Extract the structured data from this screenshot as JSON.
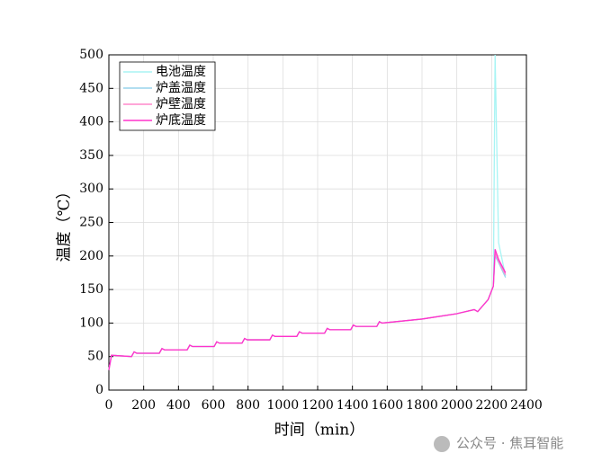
{
  "chart_data": {
    "type": "line",
    "xlabel": "时间（min）",
    "ylabel": "温度（℃）",
    "x": [
      0,
      15,
      130,
      145,
      160,
      290,
      305,
      320,
      450,
      465,
      480,
      605,
      620,
      635,
      765,
      780,
      795,
      925,
      940,
      955,
      1080,
      1095,
      1110,
      1240,
      1255,
      1270,
      1390,
      1405,
      1420,
      1540,
      1555,
      1570,
      1800,
      2000,
      2100,
      2120,
      2180,
      2210,
      2220,
      2240,
      2280
    ],
    "series": [
      {
        "name": "电池温度",
        "color": "#a8f4f4",
        "values": [
          30,
          52,
          50,
          57,
          55,
          55,
          62,
          60,
          60,
          67,
          65,
          65,
          72,
          70,
          70,
          77,
          75,
          75,
          82,
          80,
          80,
          87,
          85,
          85,
          92,
          90,
          90,
          97,
          95,
          95,
          102,
          100,
          106,
          114,
          120,
          117,
          135,
          155,
          500,
          220,
          170
        ]
      },
      {
        "name": "炉盖温度",
        "color": "#99d4ec",
        "values": [
          30,
          52,
          50,
          57,
          55,
          55,
          62,
          60,
          60,
          67,
          65,
          65,
          72,
          70,
          70,
          77,
          75,
          75,
          82,
          80,
          80,
          87,
          85,
          85,
          92,
          90,
          90,
          97,
          95,
          95,
          102,
          100,
          106,
          114,
          120,
          117,
          135,
          155,
          200,
          190,
          168
        ]
      },
      {
        "name": "炉壁温度",
        "color": "#ff88cc",
        "values": [
          30,
          52,
          50,
          57,
          55,
          55,
          62,
          60,
          60,
          67,
          65,
          65,
          72,
          70,
          70,
          77,
          75,
          75,
          82,
          80,
          80,
          87,
          85,
          85,
          92,
          90,
          90,
          97,
          95,
          95,
          102,
          100,
          106,
          114,
          120,
          117,
          135,
          155,
          205,
          192,
          172
        ]
      },
      {
        "name": "炉底温度",
        "color": "#ff33cc",
        "values": [
          30,
          52,
          50,
          57,
          55,
          55,
          62,
          60,
          60,
          67,
          65,
          65,
          72,
          70,
          70,
          77,
          75,
          75,
          82,
          80,
          80,
          87,
          85,
          85,
          92,
          90,
          90,
          97,
          95,
          95,
          102,
          100,
          106,
          114,
          120,
          117,
          135,
          155,
          210,
          195,
          175
        ]
      }
    ],
    "xlim": [
      0,
      2400
    ],
    "xticks": [
      0,
      200,
      400,
      600,
      800,
      1000,
      1200,
      1400,
      1600,
      1800,
      2000,
      2200,
      2400
    ],
    "ylim": [
      0,
      500
    ],
    "yticks": [
      0,
      50,
      100,
      150,
      200,
      250,
      300,
      350,
      400,
      450,
      500
    ],
    "grid": true,
    "legend": "upper-left"
  },
  "watermark": "公众号 · 焦耳智能"
}
